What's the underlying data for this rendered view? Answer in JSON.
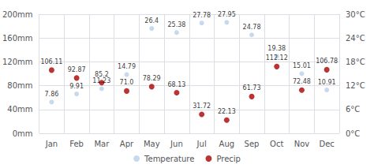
{
  "chart_data": {
    "type": "scatter",
    "categories": [
      "Jan",
      "Feb",
      "Mar",
      "Apr",
      "May",
      "Jun",
      "Jul",
      "Aug",
      "Sep",
      "Oct",
      "Nov",
      "Dec"
    ],
    "series": [
      {
        "name": "Temperature",
        "color": "#b8cfe8",
        "marker": "circle",
        "axis": "y2",
        "values": [
          7.86,
          9.91,
          11.23,
          14.79,
          26.4,
          25.38,
          27.78,
          27.95,
          24.78,
          19.38,
          15.01,
          10.91
        ]
      },
      {
        "name": "Precip",
        "color": "#aa0000",
        "marker": "circle",
        "values": [
          106.11,
          92.87,
          85.2,
          71.0,
          78.29,
          68.13,
          31.72,
          22.13,
          61.73,
          112.12,
          72.48,
          106.78
        ],
        "value_labels": [
          "106.11",
          "92.87",
          "85.2",
          "71.0",
          "78.29",
          "68.13",
          "31.72",
          "22.13",
          "61.73",
          "112.12",
          "72.48",
          "106.78"
        ]
      }
    ],
    "ylim": [
      0,
      200
    ],
    "yticks": [
      {
        "value": 0,
        "label": "0mm"
      },
      {
        "value": 40,
        "label": "40mm"
      },
      {
        "value": 80,
        "label": "80mm"
      },
      {
        "value": 120,
        "label": "120mm"
      },
      {
        "value": 160,
        "label": "160mm"
      },
      {
        "value": 200,
        "label": "200mm"
      }
    ],
    "y2lim": [
      0,
      30
    ],
    "y2ticks": [
      {
        "value": 0,
        "label": "0°C"
      },
      {
        "value": 6,
        "label": "6°C"
      },
      {
        "value": 12,
        "label": "12°C"
      },
      {
        "value": 18,
        "label": "18°C"
      },
      {
        "value": 24,
        "label": "24°C"
      },
      {
        "value": 30,
        "label": "30°C"
      }
    ],
    "grid": true,
    "legend": "bottom",
    "data_labels": true
  }
}
